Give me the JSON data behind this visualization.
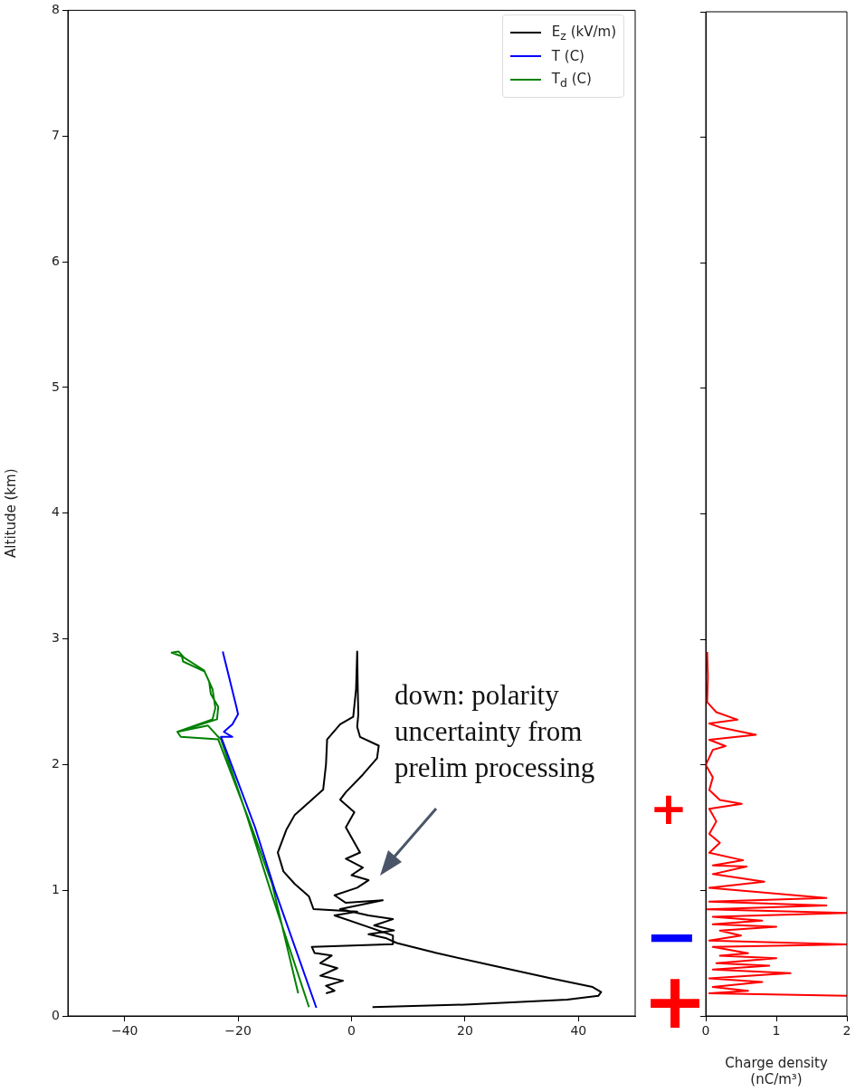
{
  "chart_data": [
    {
      "type": "line",
      "ylabel": "Altitude (km)",
      "xlim": [
        -50,
        50
      ],
      "xticks": [
        -40,
        -20,
        0,
        20,
        40
      ],
      "ylim": [
        0,
        8
      ],
      "yticks": [
        0,
        1,
        2,
        3,
        4,
        5,
        6,
        7,
        8
      ],
      "legend": "top right",
      "marker": "none",
      "grid": false,
      "annotations": [
        "down: polarity uncertainty from prelim processing",
        "+",
        "−",
        "+"
      ],
      "series": [
        {
          "name": "E$_{z}$ (kV/m)",
          "color": "#000000",
          "x": [
            3.7,
            20,
            38,
            43.5,
            44,
            42.5,
            35,
            25,
            15,
            8,
            6,
            3,
            7.5,
            4,
            7.3,
            3,
            -2,
            5.5,
            -1,
            -3,
            1,
            3,
            0,
            2,
            -1,
            1.5,
            0.5,
            -1,
            0.5,
            -2,
            -1,
            2,
            4.5,
            4.8,
            1.5,
            1,
            1.2,
            1.1,
            1,
            0.8,
            0.3,
            -2,
            -4.3,
            -4.5,
            -5,
            -7,
            -10,
            -11.5,
            -13,
            -12,
            -10,
            -7.5,
            -6.7,
            1,
            -3,
            7.3,
            7.3,
            -7,
            -6.5,
            -3.5,
            -5.5,
            -2.5,
            -5.5,
            -1.5,
            -4.5,
            -3,
            -4.5
          ],
          "values": [
            0.07,
            0.09,
            0.13,
            0.16,
            0.19,
            0.23,
            0.3,
            0.4,
            0.5,
            0.58,
            0.62,
            0.65,
            0.68,
            0.72,
            0.77,
            0.8,
            0.85,
            0.92,
            0.9,
            0.96,
            1.02,
            1.08,
            1.12,
            1.18,
            1.25,
            1.3,
            1.38,
            1.5,
            1.62,
            1.72,
            1.78,
            1.92,
            2.05,
            2.15,
            2.22,
            2.3,
            2.4,
            2.6,
            2.9,
            2.6,
            2.38,
            2.32,
            2.2,
            2.0,
            1.8,
            1.72,
            1.6,
            1.48,
            1.3,
            1.15,
            1.05,
            0.95,
            0.85,
            0.83,
            0.8,
            0.64,
            0.57,
            0.55,
            0.5,
            0.48,
            0.42,
            0.38,
            0.32,
            0.28,
            0.24,
            0.2,
            0.18
          ]
        },
        {
          "name": "T (C)",
          "color": "#0000ff",
          "x": [
            -6.2,
            -13.5,
            -17,
            -22,
            -23,
            -21,
            -22.5,
            -21,
            -20,
            -20.3,
            -22.7
          ],
          "values": [
            0.065,
            1.0,
            1.5,
            2.1,
            2.22,
            2.22,
            2.26,
            2.32,
            2.4,
            2.46,
            2.9
          ]
        },
        {
          "name": "T$_{d}$ (C)",
          "color": "#008000",
          "x": [
            -7.5,
            -14.3,
            -18.5,
            -23,
            -23.7,
            -25.3,
            -30.7,
            -23.7,
            -23.5,
            -24.8,
            -25.1,
            -25.9,
            -29.7,
            -29.9,
            -31.7,
            -30.5,
            -29.5,
            -26,
            -24.5,
            -24,
            -24.5,
            -30.7,
            -30.1,
            -23.5,
            -18,
            -14,
            -9.4
          ],
          "values": [
            0.07,
            1.0,
            1.6,
            2.2,
            2.23,
            2.31,
            2.26,
            2.36,
            2.46,
            2.56,
            2.66,
            2.74,
            2.82,
            2.86,
            2.89,
            2.9,
            2.85,
            2.75,
            2.6,
            2.45,
            2.36,
            2.26,
            2.22,
            2.2,
            1.55,
            1.05,
            0.18
          ]
        }
      ]
    },
    {
      "type": "line",
      "xlabel": "Charge density\n(nC/m³)",
      "xlim": [
        0,
        2
      ],
      "xticks": [
        0,
        1,
        2
      ],
      "ylim": [
        0,
        8
      ],
      "yticks": [
        0,
        1,
        2,
        3,
        4,
        5,
        6,
        7,
        8
      ],
      "tick_labels": "x",
      "marker": "none",
      "grid": false,
      "series": [
        {
          "color": "#ff0000",
          "x": [
            0.02,
            0.03,
            0.02,
            0.1,
            0.15,
            0.45,
            0.05,
            0.2,
            0.71,
            0.05,
            0.28,
            0.1,
            0.0,
            0.1,
            0.05,
            0.2,
            0.51,
            0.05,
            0.15,
            0.05,
            0.2,
            0.05,
            0.53,
            0.1,
            0.58,
            0.1,
            0.83,
            0.05,
            1.71,
            0.05,
            1.71,
            0.02,
            2.0,
            0.1,
            0.8,
            0.1,
            1.0,
            0.2,
            0.5,
            0.05,
            2.0,
            0.1,
            0.6,
            0.2,
            1.0,
            0.15,
            0.9,
            0.1,
            1.2,
            0.05,
            0.8,
            0.1,
            0.6,
            0.05,
            2.0
          ],
          "values": [
            2.9,
            2.7,
            2.5,
            2.45,
            2.42,
            2.36,
            2.33,
            2.3,
            2.24,
            2.2,
            2.15,
            2.12,
            2.0,
            1.9,
            1.8,
            1.72,
            1.69,
            1.65,
            1.55,
            1.45,
            1.38,
            1.3,
            1.24,
            1.2,
            1.19,
            1.13,
            1.07,
            1.02,
            0.94,
            0.91,
            0.88,
            0.85,
            0.82,
            0.79,
            0.76,
            0.73,
            0.71,
            0.68,
            0.64,
            0.6,
            0.57,
            0.55,
            0.5,
            0.48,
            0.46,
            0.42,
            0.4,
            0.37,
            0.34,
            0.3,
            0.27,
            0.23,
            0.2,
            0.18,
            0.16
          ]
        }
      ]
    }
  ]
}
